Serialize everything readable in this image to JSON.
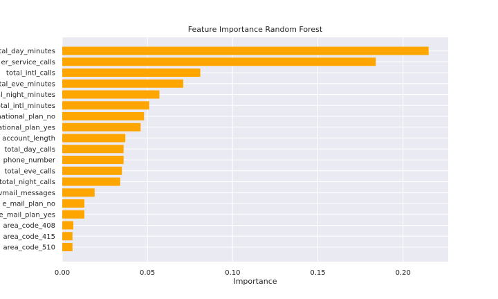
{
  "chart_data": {
    "type": "bar",
    "orientation": "horizontal",
    "title": "Feature Importance Random Forest",
    "xlabel": "Importance",
    "ylabel": "",
    "xlim": [
      0,
      0.2265
    ],
    "xticks": [
      0.0,
      0.05,
      0.1,
      0.15,
      0.2
    ],
    "xtick_labels": [
      "0.00",
      "0.05",
      "0.10",
      "0.15",
      "0.20"
    ],
    "grid": true,
    "categories": [
      "total_day_minutes",
      "number_customer_service_calls",
      "total_intl_calls",
      "total_eve_minutes",
      "total_night_minutes",
      "total_intl_minutes",
      "international_plan_no",
      "international_plan_yes",
      "account_length",
      "total_day_calls",
      "phone_number",
      "total_eve_calls",
      "total_night_calls",
      "number_vmail_messages",
      "voice_mail_plan_no",
      "voice_mail_plan_yes",
      "area_code_408",
      "area_code_415",
      "area_code_510"
    ],
    "tick_labels_visible": [
      "total_day_minutes",
      "er_service_calls",
      "total_intl_calls",
      "tal_eve_minutes",
      "al_night_minutes",
      "total_intl_minutes",
      "national_plan_no",
      "ational_plan_yes",
      "account_length",
      "total_day_calls",
      "phone_number",
      "total_eve_calls",
      "total_night_calls",
      "vmail_messages",
      "e_mail_plan_no",
      "e_mail_plan_yes",
      "area_code_408",
      "area_code_415",
      "area_code_510"
    ],
    "values": [
      0.215,
      0.184,
      0.081,
      0.071,
      0.057,
      0.051,
      0.048,
      0.046,
      0.037,
      0.036,
      0.036,
      0.035,
      0.034,
      0.019,
      0.013,
      0.013,
      0.0065,
      0.006,
      0.006
    ],
    "bar_color": "#FFA500",
    "background_color": "#EAEAF2",
    "grid_color": "#FFFFFF"
  }
}
